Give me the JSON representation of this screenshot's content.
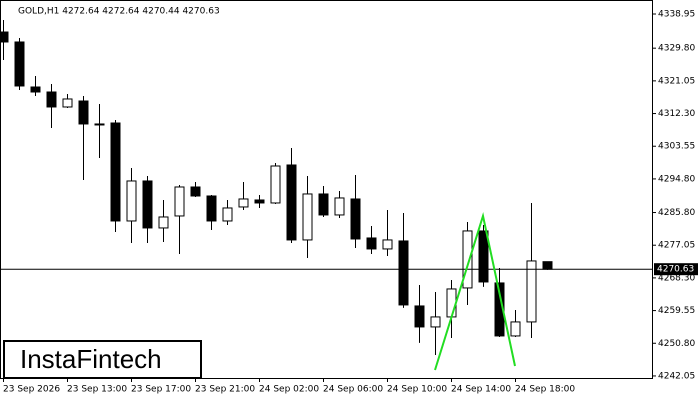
{
  "chart_data": {
    "type": "candlestick",
    "title": "GOLD,H1  4272.64 4272.64 4270.44 4270.63",
    "categories": [
      "23 Sep 2026",
      null,
      null,
      null,
      "23 Sep 13:00",
      null,
      null,
      null,
      "23 Sep 17:00",
      null,
      null,
      null,
      "23 Sep 21:00",
      null,
      null,
      null,
      "24 Sep 02:00",
      null,
      null,
      null,
      "24 Sep 06:00",
      null,
      null,
      null,
      "24 Sep 10:00",
      null,
      null,
      null,
      "24 Sep 14:00",
      null,
      null,
      null,
      "24 Sep 18:00",
      null,
      null
    ],
    "open": [
      4334.13,
      4331.46,
      4319.41,
      4318.07,
      4314.06,
      4315.66,
      4309.51,
      4309.77,
      4283.54,
      4294.25,
      4281.67,
      4284.88,
      4292.64,
      4290.23,
      4283.54,
      4287.29,
      4289.16,
      4288.36,
      4298.53,
      4278.46,
      4290.77,
      4285.15,
      4289.43,
      4278.99,
      4276.05,
      4278.19,
      4260.79,
      4255.17,
      4257.85,
      4265.61,
      4280.87,
      4266.95,
      4252.76,
      4256.51,
      4272.64
    ],
    "high": [
      4337.34,
      4332.53,
      4322.35,
      4320.21,
      4317.54,
      4317.0,
      4314.86,
      4310.58,
      4297.73,
      4295.59,
      4289.16,
      4293.18,
      4293.98,
      4290.5,
      4289.16,
      4293.98,
      4290.5,
      4299.07,
      4303.08,
      4295.59,
      4292.91,
      4291.57,
      4295.86,
      4282.2,
      4286.49,
      4285.68,
      4266.41,
      4264.54,
      4267.75,
      4283.27,
      4282.47,
      4270.96,
      4259.72,
      4288.36,
      4272.64
    ],
    "low": [
      4326.64,
      4318.61,
      4317.0,
      4308.44,
      4313.79,
      4294.52,
      4300.41,
      4280.6,
      4277.65,
      4277.65,
      4277.92,
      4274.71,
      4289.97,
      4281.13,
      4282.47,
      4286.49,
      4287.02,
      4288.09,
      4277.65,
      4273.64,
      4284.61,
      4284.35,
      4276.32,
      4274.71,
      4274.17,
      4260.26,
      4250.89,
      4247.67,
      4252.22,
      4261.06,
      4265.88,
      4252.49,
      4252.49,
      4252.22,
      4270.44
    ],
    "close": [
      4331.46,
      4319.68,
      4318.07,
      4314.06,
      4316.2,
      4309.51,
      4309.51,
      4283.54,
      4294.25,
      4281.67,
      4284.61,
      4292.64,
      4290.23,
      4283.54,
      4287.02,
      4289.43,
      4288.36,
      4298.26,
      4278.46,
      4290.77,
      4285.15,
      4289.7,
      4278.72,
      4276.05,
      4278.46,
      4261.06,
      4255.17,
      4257.85,
      4265.34,
      4280.87,
      4267.21,
      4252.76,
      4256.51,
      4272.84,
      4270.63
    ],
    "up_color": "#ffffff",
    "down_color": "#000000",
    "current_price": 4270.63,
    "ylim": [
      4241.5,
      4342.7
    ],
    "yticks": [
      4338.95,
      {
        "value": 4329.8,
        "label": "4329.80"
      },
      4321.05,
      {
        "value": 4312.3,
        "label": "4312.30"
      },
      4303.55,
      {
        "value": 4294.8,
        "label": "4294.80"
      },
      {
        "value": 4285.8,
        "label": "4285.80"
      },
      4277.05,
      {
        "value": 4268.3,
        "label": "4268.30"
      },
      4259.55,
      {
        "value": 4250.8,
        "label": "4250.80"
      },
      4242.05
    ]
  },
  "watermark": "InstaFintech"
}
